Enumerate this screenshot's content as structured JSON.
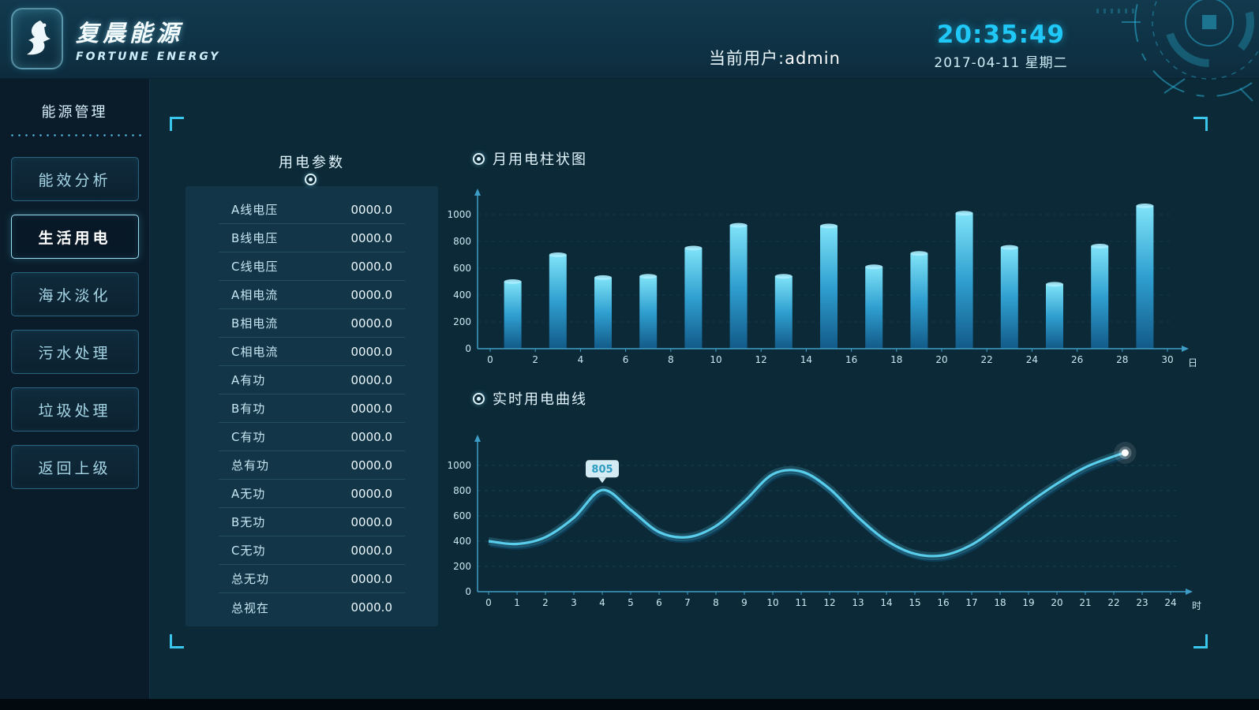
{
  "header": {
    "logo_cn": "复晨能源",
    "logo_en": "FORTUNE ENERGY",
    "user_label": "当前用户:",
    "user_name": "admin",
    "time": "20:35:49",
    "date": "2017-04-11 星期二"
  },
  "sidebar": {
    "title": "能源管理",
    "items": [
      {
        "key": "energy-efficiency",
        "label": "能效分析",
        "active": false
      },
      {
        "key": "domestic-power",
        "label": "生活用电",
        "active": true
      },
      {
        "key": "desalination",
        "label": "海水淡化",
        "active": false
      },
      {
        "key": "sewage-treatment",
        "label": "污水处理",
        "active": false
      },
      {
        "key": "waste-treatment",
        "label": "垃圾处理",
        "active": false
      },
      {
        "key": "back",
        "label": "返回上级",
        "active": false
      }
    ]
  },
  "params": {
    "title": "用电参数",
    "rows": [
      {
        "label": "A线电压",
        "value": "0000.0"
      },
      {
        "label": "B线电压",
        "value": "0000.0"
      },
      {
        "label": "C线电压",
        "value": "0000.0"
      },
      {
        "label": "A相电流",
        "value": "0000.0"
      },
      {
        "label": "B相电流",
        "value": "0000.0"
      },
      {
        "label": "C相电流",
        "value": "0000.0"
      },
      {
        "label": "A有功",
        "value": "0000.0"
      },
      {
        "label": "B有功",
        "value": "0000.0"
      },
      {
        "label": "C有功",
        "value": "0000.0"
      },
      {
        "label": "总有功",
        "value": "0000.0"
      },
      {
        "label": "A无功",
        "value": "0000.0"
      },
      {
        "label": "B无功",
        "value": "0000.0"
      },
      {
        "label": "C无功",
        "value": "0000.0"
      },
      {
        "label": "总无功",
        "value": "0000.0"
      },
      {
        "label": "总视在",
        "value": "0000.0"
      }
    ]
  },
  "chart_data": [
    {
      "type": "bar",
      "title": "月用电柱状图",
      "xlabel": "日",
      "ylabel": "",
      "ylim": [
        0,
        1100
      ],
      "yticks": [
        0,
        200,
        400,
        600,
        800,
        1000
      ],
      "xticks": [
        0,
        2,
        4,
        6,
        8,
        10,
        12,
        14,
        16,
        18,
        20,
        22,
        24,
        26,
        28,
        30
      ],
      "bars": [
        {
          "day": 1,
          "value": 500
        },
        {
          "day": 3,
          "value": 700
        },
        {
          "day": 5,
          "value": 530
        },
        {
          "day": 7,
          "value": 540
        },
        {
          "day": 9,
          "value": 750
        },
        {
          "day": 11,
          "value": 920
        },
        {
          "day": 13,
          "value": 540
        },
        {
          "day": 15,
          "value": 915
        },
        {
          "day": 17,
          "value": 610
        },
        {
          "day": 19,
          "value": 710
        },
        {
          "day": 21,
          "value": 1010
        },
        {
          "day": 23,
          "value": 755
        },
        {
          "day": 25,
          "value": 480
        },
        {
          "day": 27,
          "value": 765
        },
        {
          "day": 29,
          "value": 1065
        }
      ]
    },
    {
      "type": "line",
      "title": "实时用电曲线",
      "xlabel": "时",
      "ylabel": "",
      "ylim": [
        0,
        1150
      ],
      "yticks": [
        0,
        200,
        400,
        600,
        800,
        1000
      ],
      "xticks": [
        0,
        1,
        2,
        3,
        4,
        5,
        6,
        7,
        8,
        9,
        10,
        11,
        12,
        13,
        14,
        15,
        16,
        17,
        18,
        19,
        20,
        21,
        22,
        23,
        24
      ],
      "points": [
        {
          "x": 0,
          "v": 400
        },
        {
          "x": 1,
          "v": 378
        },
        {
          "x": 2,
          "v": 432
        },
        {
          "x": 3,
          "v": 585
        },
        {
          "x": 4,
          "v": 805
        },
        {
          "x": 5,
          "v": 648
        },
        {
          "x": 6,
          "v": 472
        },
        {
          "x": 7,
          "v": 432
        },
        {
          "x": 8,
          "v": 520
        },
        {
          "x": 9,
          "v": 715
        },
        {
          "x": 10,
          "v": 930
        },
        {
          "x": 11,
          "v": 952
        },
        {
          "x": 12,
          "v": 815
        },
        {
          "x": 13,
          "v": 590
        },
        {
          "x": 14,
          "v": 405
        },
        {
          "x": 15,
          "v": 300
        },
        {
          "x": 16,
          "v": 288
        },
        {
          "x": 17,
          "v": 372
        },
        {
          "x": 18,
          "v": 528
        },
        {
          "x": 19,
          "v": 700
        },
        {
          "x": 20,
          "v": 855
        },
        {
          "x": 21,
          "v": 985
        },
        {
          "x": 22,
          "v": 1072
        },
        {
          "x": 22.4,
          "v": 1100
        }
      ],
      "marker": {
        "x": 4,
        "label": "805"
      }
    }
  ],
  "colors": {
    "accent": "#2fc2ea",
    "clock": "#1fc8f6",
    "bar_top": "#7fe3f8",
    "bar_bottom": "#125a88",
    "line": "#58cdec",
    "background": "#0c2838",
    "sidebar": "#0a1c29"
  }
}
